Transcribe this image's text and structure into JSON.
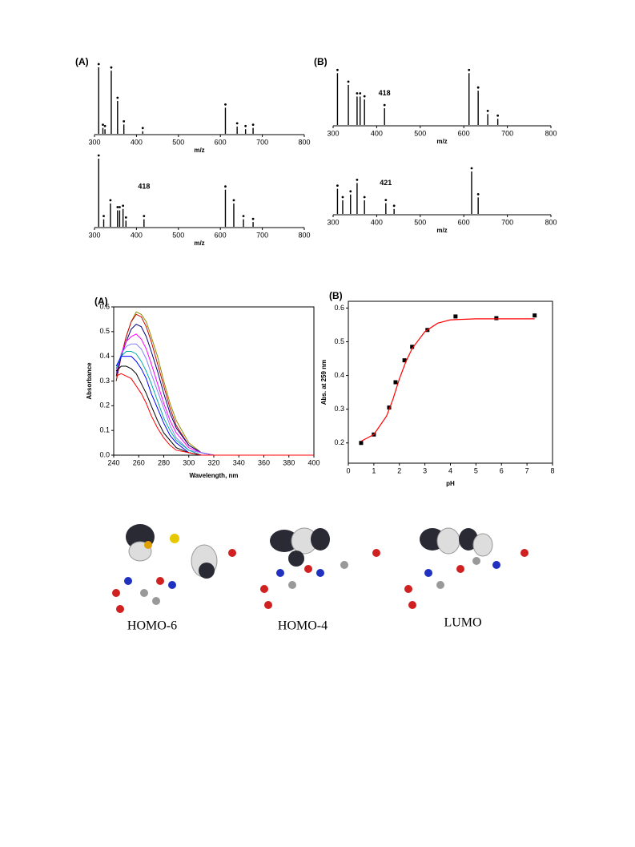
{
  "chart_data": [
    {
      "type": "spectrum",
      "label": "(A)",
      "xlabel": "m/z",
      "xlim": [
        300,
        800
      ],
      "xticks": [
        300,
        400,
        500,
        600,
        700,
        800
      ],
      "x": [
        310,
        320,
        325,
        340,
        355,
        370,
        415,
        612,
        640,
        660,
        678
      ],
      "values": [
        1.0,
        0.1,
        0.08,
        0.95,
        0.5,
        0.15,
        0.05,
        0.4,
        0.12,
        0.08,
        0.1
      ],
      "color": "#000000",
      "annotations": []
    },
    {
      "type": "spectrum",
      "xlabel": "m/z",
      "xlim": [
        300,
        800
      ],
      "xticks": [
        300,
        400,
        500,
        600,
        700,
        800
      ],
      "x": [
        310,
        322,
        338,
        355,
        360,
        368,
        375,
        418,
        612,
        632,
        655,
        678
      ],
      "values": [
        1.0,
        0.12,
        0.35,
        0.25,
        0.25,
        0.27,
        0.1,
        0.12,
        0.55,
        0.35,
        0.12,
        0.08
      ],
      "color": "#000000",
      "annotations": [
        418
      ]
    },
    {
      "type": "spectrum",
      "label": "(B)",
      "xlabel": "m/z",
      "xlim": [
        300,
        800
      ],
      "xticks": [
        300,
        400,
        500,
        600,
        700,
        800
      ],
      "x": [
        310,
        335,
        355,
        362,
        372,
        418,
        612,
        633,
        655,
        678
      ],
      "values": [
        0.9,
        0.7,
        0.5,
        0.5,
        0.45,
        0.3,
        0.9,
        0.6,
        0.2,
        0.12
      ],
      "color": "#000000",
      "annotations": [
        418
      ]
    },
    {
      "type": "spectrum",
      "xlabel": "m/z",
      "xlim": [
        300,
        800
      ],
      "xticks": [
        300,
        400,
        500,
        600,
        700,
        800
      ],
      "x": [
        310,
        322,
        340,
        355,
        372,
        421,
        440,
        618,
        633
      ],
      "values": [
        0.45,
        0.25,
        0.35,
        0.55,
        0.25,
        0.2,
        0.1,
        0.75,
        0.3
      ],
      "color": "#000000",
      "annotations": [
        421
      ]
    },
    {
      "type": "line",
      "label": "(A)",
      "xlabel": "Wavelength, nm",
      "ylabel": "Absorbance",
      "xlim": [
        240,
        400
      ],
      "xticks": [
        240,
        260,
        280,
        300,
        320,
        340,
        360,
        380,
        400
      ],
      "ylim": [
        0,
        0.6
      ],
      "yticks": [
        {
          "value": 0,
          "label": "0.0"
        },
        0.1,
        0.2,
        0.3,
        0.4,
        0.5,
        0.6
      ],
      "x": [
        242,
        246,
        250,
        254,
        258,
        262,
        266,
        270,
        275,
        280,
        285,
        290,
        300,
        310,
        320,
        340,
        400
      ],
      "series": [
        {
          "color": "#8b8b00",
          "values": [
            0.3,
            0.4,
            0.48,
            0.54,
            0.58,
            0.57,
            0.54,
            0.48,
            0.4,
            0.3,
            0.21,
            0.14,
            0.05,
            0.01,
            0,
            0,
            0
          ]
        },
        {
          "color": "#cc0000",
          "values": [
            0.3,
            0.4,
            0.48,
            0.54,
            0.57,
            0.56,
            0.52,
            0.46,
            0.37,
            0.28,
            0.19,
            0.12,
            0.04,
            0.01,
            0,
            0,
            0
          ]
        },
        {
          "color": "#000080",
          "values": [
            0.32,
            0.4,
            0.46,
            0.51,
            0.53,
            0.52,
            0.48,
            0.42,
            0.34,
            0.25,
            0.17,
            0.11,
            0.04,
            0.01,
            0,
            0,
            0
          ]
        },
        {
          "color": "#ff00ff",
          "values": [
            0.33,
            0.41,
            0.46,
            0.48,
            0.49,
            0.47,
            0.43,
            0.37,
            0.29,
            0.21,
            0.14,
            0.09,
            0.03,
            0.01,
            0,
            0,
            0
          ]
        },
        {
          "color": "#8080ff",
          "values": [
            0.34,
            0.41,
            0.44,
            0.45,
            0.45,
            0.43,
            0.39,
            0.33,
            0.26,
            0.19,
            0.12,
            0.07,
            0.02,
            0.01,
            0,
            0,
            0
          ]
        },
        {
          "color": "#00aaaa",
          "values": [
            0.35,
            0.4,
            0.42,
            0.42,
            0.41,
            0.38,
            0.34,
            0.29,
            0.22,
            0.15,
            0.1,
            0.06,
            0.02,
            0,
            0,
            0,
            0
          ]
        },
        {
          "color": "#0000ff",
          "values": [
            0.36,
            0.4,
            0.4,
            0.4,
            0.38,
            0.35,
            0.31,
            0.25,
            0.19,
            0.13,
            0.08,
            0.05,
            0.01,
            0,
            0,
            0,
            0
          ]
        },
        {
          "color": "#000000",
          "values": [
            0.34,
            0.36,
            0.36,
            0.35,
            0.33,
            0.29,
            0.25,
            0.2,
            0.14,
            0.09,
            0.06,
            0.03,
            0.01,
            0,
            0,
            0,
            0
          ]
        },
        {
          "color": "#ff0000",
          "values": [
            0.32,
            0.33,
            0.32,
            0.31,
            0.28,
            0.25,
            0.21,
            0.16,
            0.11,
            0.07,
            0.04,
            0.02,
            0.01,
            0,
            0,
            0,
            0
          ]
        }
      ]
    },
    {
      "type": "scatter",
      "label": "(B)",
      "xlabel": "pH",
      "ylabel": "Abs. at 259 nm",
      "xlim": [
        0,
        8
      ],
      "xticks": [
        0,
        1,
        2,
        3,
        4,
        5,
        6,
        7,
        8
      ],
      "ylim": [
        0.14,
        0.62
      ],
      "yticks": [
        0.2,
        0.3,
        0.4,
        0.5,
        0.6
      ],
      "series": [
        {
          "style": "markers",
          "color": "#000000",
          "x": [
            0.5,
            1.0,
            1.6,
            1.85,
            2.2,
            2.5,
            3.1,
            4.2,
            5.8,
            7.3
          ],
          "values": [
            0.2,
            0.225,
            0.305,
            0.38,
            0.445,
            0.485,
            0.535,
            0.575,
            0.57,
            0.578
          ]
        },
        {
          "style": "line",
          "color": "#ff0000",
          "x": [
            0.5,
            1,
            1.5,
            1.75,
            2,
            2.25,
            2.5,
            3,
            3.5,
            4,
            5,
            6,
            7.3
          ],
          "values": [
            0.205,
            0.225,
            0.28,
            0.33,
            0.39,
            0.44,
            0.48,
            0.53,
            0.555,
            0.565,
            0.568,
            0.568,
            0.568
          ]
        }
      ]
    }
  ],
  "orbitals": [
    "HOMO-6",
    "HOMO-4",
    "LUMO"
  ]
}
